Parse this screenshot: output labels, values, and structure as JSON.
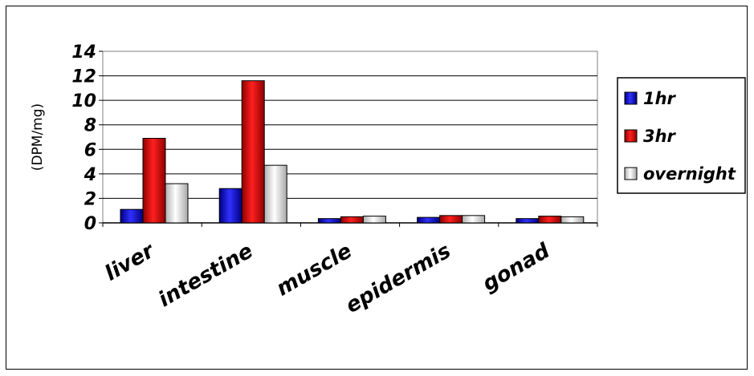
{
  "chart_data": {
    "type": "bar",
    "title": "",
    "xlabel": "",
    "ylabel": "(DPM/mg)",
    "categories": [
      "liver",
      "intestine",
      "muscle",
      "epidermis",
      "gonad"
    ],
    "series": [
      {
        "name": "1hr",
        "values": [
          1.1,
          2.8,
          0.35,
          0.45,
          0.35
        ],
        "color": "#1010e0"
      },
      {
        "name": "3hr",
        "values": [
          6.9,
          11.6,
          0.5,
          0.6,
          0.55
        ],
        "color": "#e01010"
      },
      {
        "name": "overnight",
        "values": [
          3.2,
          4.7,
          0.55,
          0.6,
          0.5
        ],
        "color": "#e8e8e8"
      }
    ],
    "ylim": [
      0,
      14
    ],
    "yticks": [
      "0",
      "2",
      "4",
      "6",
      "8",
      "10",
      "12",
      "14"
    ],
    "grid": true,
    "legend": "right"
  }
}
